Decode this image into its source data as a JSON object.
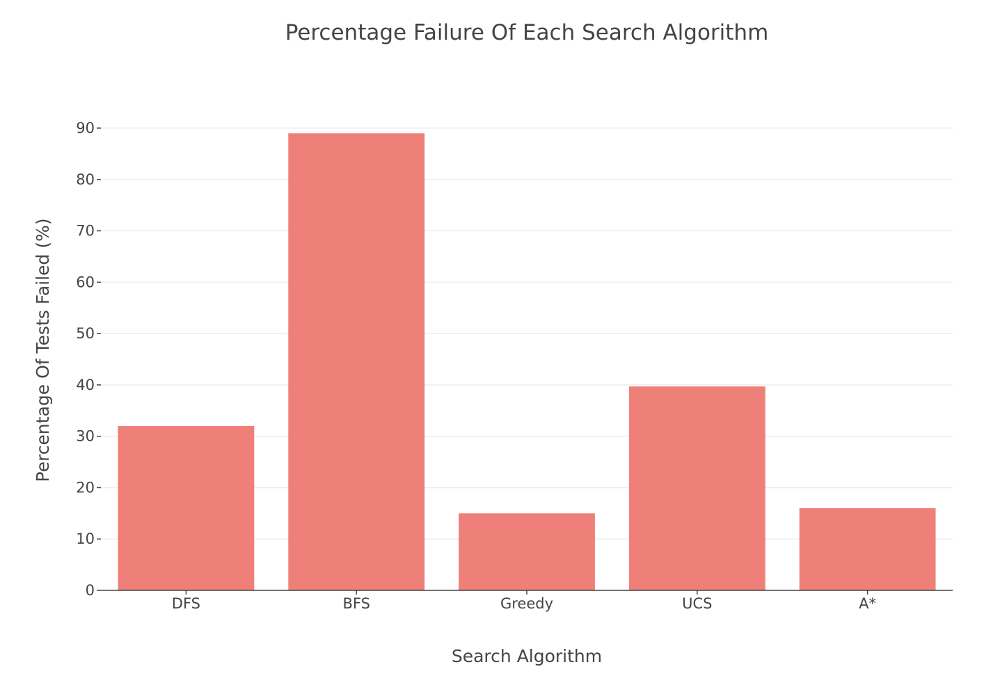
{
  "chart_data": {
    "type": "bar",
    "title": "Percentage Failure Of Each Search Algorithm",
    "xlabel": "Search Algorithm",
    "ylabel": "Percentage Of Tests Failed (%)",
    "categories": [
      "DFS",
      "BFS",
      "Greedy",
      "UCS",
      "A*"
    ],
    "values": [
      32,
      89,
      15,
      39.7,
      16
    ],
    "ylim": [
      0,
      90
    ],
    "yticks": [
      0,
      10,
      20,
      30,
      40,
      50,
      60,
      70,
      80,
      90
    ],
    "grid": true,
    "legend": "none",
    "bar_color": "#ef8079"
  }
}
